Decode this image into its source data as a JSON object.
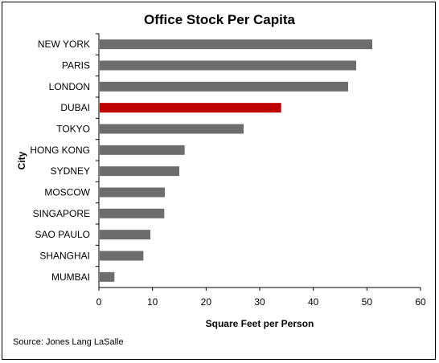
{
  "chart_data": {
    "type": "bar",
    "orientation": "horizontal",
    "title": "Office Stock Per Capita",
    "xlabel": "Square Feet per Person",
    "ylabel": "City",
    "categories": [
      "NEW YORK",
      "PARIS",
      "LONDON",
      "DUBAI",
      "TOKYO",
      "HONG KONG",
      "SYDNEY",
      "MOSCOW",
      "SINGAPORE",
      "SAO PAULO",
      "SHANGHAI",
      "MUMBAI"
    ],
    "values": [
      51,
      48,
      46.5,
      34,
      27,
      16,
      15,
      12.3,
      12.2,
      9.6,
      8.3,
      2.9
    ],
    "xlim": [
      0,
      60
    ],
    "xticks": [
      0,
      10,
      20,
      30,
      40,
      50,
      60
    ],
    "grid": false,
    "legend": "none",
    "colors": {
      "default": "#6d6d6d",
      "highlight": "#c00000",
      "highlight_category": "DUBAI"
    }
  },
  "source": "Source: Jones Lang LaSalle"
}
